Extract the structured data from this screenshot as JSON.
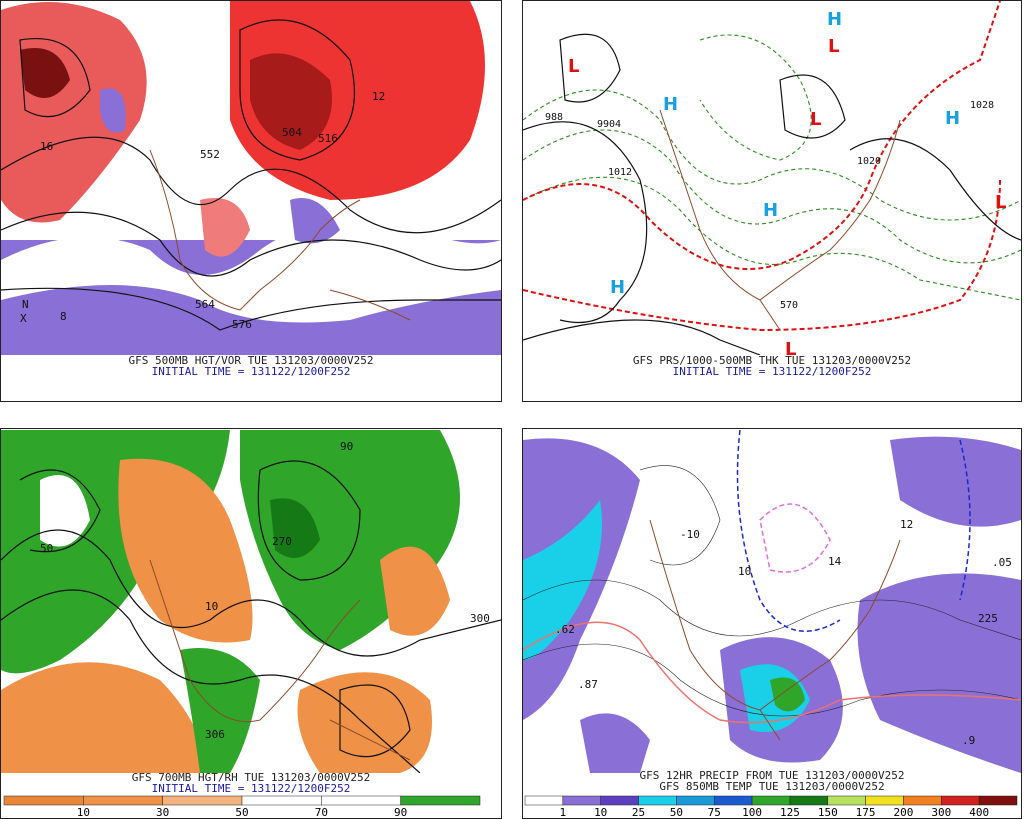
{
  "panels": [
    {
      "caption": "GFS 500MB HGT/VOR TUE 131203/0000V252",
      "subcaption": "INITIAL TIME = 131122/1200F252",
      "labels": [
        "552",
        "504",
        "516",
        "564",
        "576",
        "N",
        "X",
        "8",
        "12",
        "16"
      ]
    },
    {
      "caption": "GFS PRS/1000-500MB THK TUE 131203/0000V252",
      "subcaption": "INITIAL TIME = 131122/1200F252",
      "labels": [
        "L",
        "H",
        "1012",
        "1020",
        "1028",
        "988",
        "9904",
        "570"
      ]
    },
    {
      "caption": "GFS 700MB HGT/RH TUE 131203/0000V252",
      "subcaption": "INITIAL TIME = 131122/1200F252",
      "labels": [
        "300",
        "270",
        "50",
        "90",
        "10",
        "306"
      ],
      "colorbar": [
        "10",
        "30",
        "50",
        "70",
        "90"
      ]
    },
    {
      "caption": "GFS 12HR PRECIP FROM TUE 131203/0000V252",
      "subcaption": "GFS 850MB TEMP TUE 131203/0000V252",
      "labels": [
        "12",
        ".62",
        ".87",
        "225",
        "-10",
        "10",
        "14",
        ".9",
        ".05"
      ],
      "colorbar": [
        "1",
        "10",
        "25",
        "50",
        "75",
        "100",
        "125",
        "150",
        "175",
        "200",
        "300",
        "400"
      ]
    }
  ]
}
